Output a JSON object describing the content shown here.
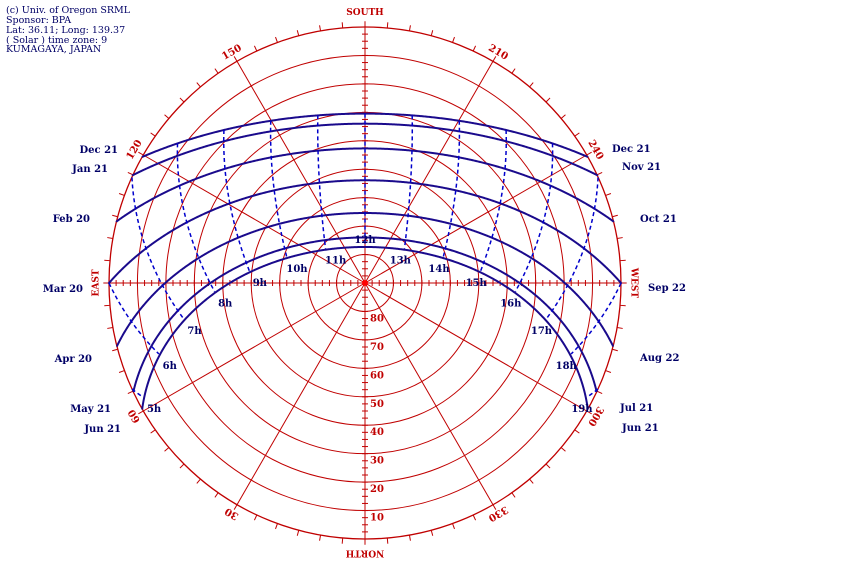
{
  "header": {
    "lines": [
      "(c) Univ. of Oregon SRML",
      "Sponsor: BPA",
      "Lat: 36.11; Long: 139.37",
      "( Solar ) time zone: 9",
      "KUMAGAYA,  JAPAN"
    ]
  },
  "compass": {
    "south": "SOUTH",
    "east": "EAST",
    "west": "WEST",
    "north": "NORTH"
  },
  "azimuth_labels": [
    30,
    60,
    120,
    150,
    210,
    240,
    300,
    330
  ],
  "altitude_labels": [
    10,
    20,
    30,
    40,
    50,
    60,
    70,
    80
  ],
  "hour_labels": [
    "5h",
    "6h",
    "7h",
    "8h",
    "9h",
    "10h",
    "11h",
    "12h",
    "13h",
    "14h",
    "15h",
    "16h",
    "17h",
    "18h",
    "19h"
  ],
  "date_labels": {
    "left": [
      "Dec 21",
      "Jan 21",
      "Feb 20",
      "Mar 20",
      "Apr 20",
      "May 21",
      "Jun 21"
    ],
    "right": [
      "Dec 21",
      "Nov 21",
      "Oct 21",
      "Sep 22",
      "Aug 22",
      "Jul 21",
      "Jun 21"
    ]
  }
}
